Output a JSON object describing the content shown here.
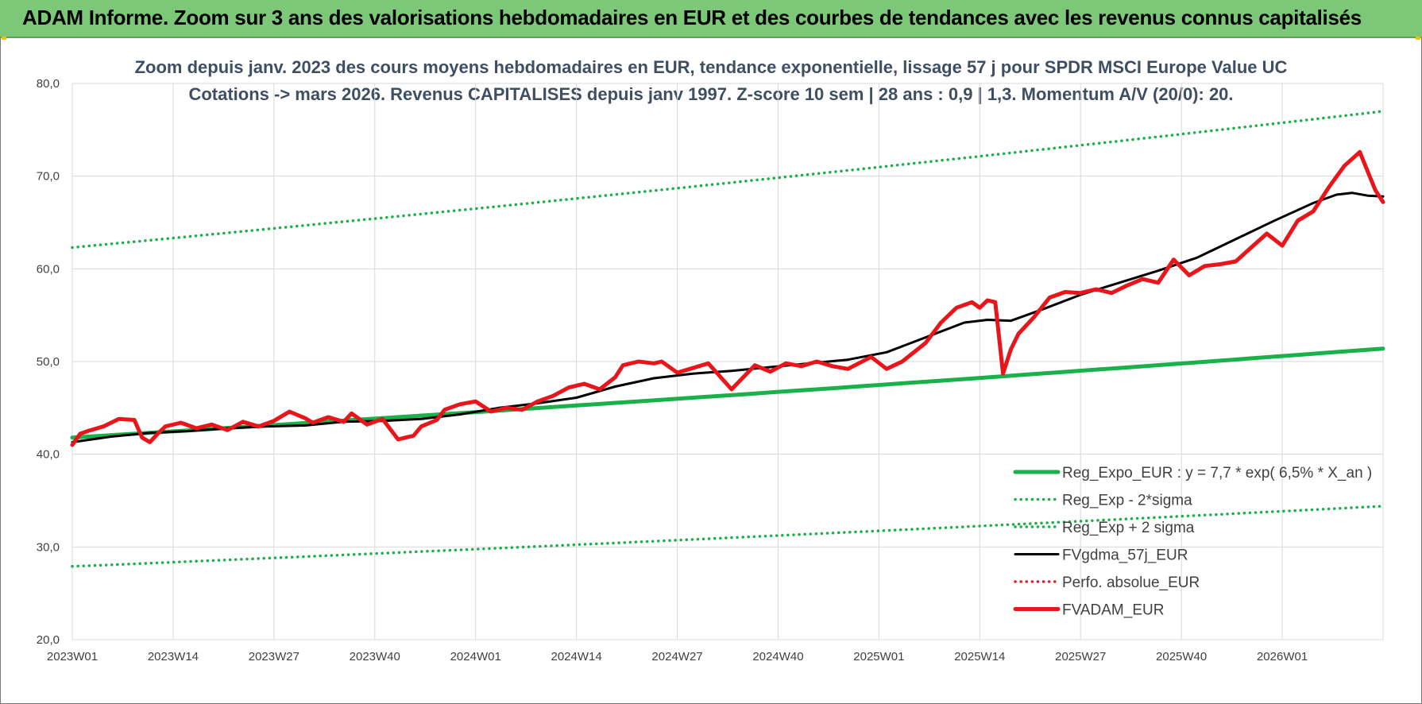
{
  "banner": {
    "title": "ADAM Informe. Zoom sur 3 ans des valorisations hebdomadaires en EUR et des courbes de tendances avec les revenus connus capitalisés",
    "color": "#7dc778"
  },
  "chart_data": {
    "type": "line",
    "title_line1": "Zoom depuis janv. 2023 des cours moyens hebdomadaires en EUR, tendance exponentielle, lissage 57 j pour SPDR MSCI Europe Value UC",
    "title_line2": "Cotations -> mars 2026. Revenus CAPITALISES depuis janv 1997. Z-score 10 sem | 28 ans : 0,9 | 1,3. Momentum A/V (20/0): 20.",
    "ylim": [
      20,
      80
    ],
    "y_ticks": [
      "80,0",
      "70,0",
      "60,0",
      "50,0",
      "40,0",
      "30,0",
      "20,0"
    ],
    "x_ticks": [
      "2023W01",
      "2023W14",
      "2023W27",
      "2023W40",
      "2024W01",
      "2024W14",
      "2024W27",
      "2024W40",
      "2025W01",
      "2025W14",
      "2025W27",
      "2025W40",
      "2026W01"
    ],
    "x_range_weeks": [
      0,
      169
    ],
    "grid": true,
    "legend_position": "bottom-right",
    "series": [
      {
        "name": "Reg_Expo_EUR : y = 7,7 * exp( 6,5% *  X_an )",
        "style": "solid-thick",
        "color": "#1ab04a",
        "x": [
          0,
          169
        ],
        "y": [
          41.8,
          51.4
        ],
        "curve": "exponential"
      },
      {
        "name": "Reg_Exp - 2*sigma",
        "style": "dotted",
        "color": "#1ab04a",
        "x": [
          0,
          169
        ],
        "y": [
          62.3,
          77.0
        ],
        "curve": "exponential"
      },
      {
        "name": "Reg_Exp + 2 sigma",
        "style": "dotted",
        "color": "#1ab04a",
        "x": [
          0,
          169
        ],
        "y": [
          27.9,
          34.4
        ],
        "curve": "exponential"
      },
      {
        "name": "FVgdma_57j_EUR",
        "style": "solid",
        "color": "#000000",
        "x": [
          0,
          5,
          10,
          15,
          20,
          25,
          30,
          35,
          40,
          45,
          50,
          55,
          60,
          65,
          70,
          75,
          80,
          85,
          90,
          95,
          100,
          105,
          110,
          115,
          118,
          121,
          125,
          130,
          135,
          140,
          145,
          150,
          155,
          160,
          163,
          165,
          167,
          169
        ],
        "y": [
          41.3,
          41.9,
          42.3,
          42.5,
          42.8,
          43.0,
          43.1,
          43.5,
          43.6,
          43.8,
          44.3,
          45.0,
          45.5,
          46.1,
          47.3,
          48.2,
          48.7,
          49.0,
          49.4,
          49.8,
          50.2,
          51.0,
          52.6,
          54.2,
          54.5,
          54.4,
          55.6,
          57.2,
          58.5,
          59.8,
          61.2,
          63.2,
          65.2,
          67.1,
          68.0,
          68.2,
          67.9,
          67.8
        ]
      },
      {
        "name": "Perfo. absolue_EUR",
        "style": "dotted",
        "color": "#e02020",
        "x": [],
        "y": []
      },
      {
        "name": "FVADAM_EUR",
        "style": "solid-thick",
        "color": "#e8151b",
        "x": [
          0,
          1,
          2,
          4,
          6,
          8,
          9,
          10,
          11,
          12,
          14,
          16,
          18,
          20,
          22,
          24,
          26,
          28,
          30,
          31,
          33,
          35,
          36,
          38,
          40,
          42,
          44,
          45,
          47,
          48,
          50,
          52,
          54,
          56,
          58,
          60,
          62,
          64,
          66,
          68,
          70,
          71,
          73,
          75,
          76,
          78,
          80,
          82,
          85,
          88,
          90,
          92,
          94,
          96,
          98,
          100,
          103,
          105,
          107,
          110,
          112,
          114,
          116,
          117,
          118,
          119,
          120,
          121,
          122,
          124,
          126,
          128,
          130,
          132,
          134,
          136,
          138,
          140,
          142,
          144,
          146,
          148,
          150,
          152,
          154,
          156,
          158,
          160,
          162,
          164,
          166,
          168,
          169
        ],
        "y": [
          41.0,
          42.2,
          42.5,
          43.0,
          43.8,
          43.7,
          41.8,
          41.3,
          42.2,
          43.0,
          43.4,
          42.8,
          43.2,
          42.6,
          43.5,
          43.0,
          43.6,
          44.6,
          43.9,
          43.4,
          44.0,
          43.5,
          44.4,
          43.2,
          43.8,
          41.6,
          42.0,
          43.0,
          43.7,
          44.8,
          45.4,
          45.7,
          44.6,
          45.0,
          44.8,
          45.7,
          46.3,
          47.2,
          47.6,
          47.0,
          48.3,
          49.6,
          50.0,
          49.8,
          50.0,
          48.8,
          49.3,
          49.8,
          47.0,
          49.6,
          48.9,
          49.8,
          49.5,
          50.0,
          49.5,
          49.2,
          50.5,
          49.2,
          50.0,
          52.0,
          54.2,
          55.8,
          56.4,
          55.8,
          56.6,
          56.4,
          48.7,
          51.3,
          53.0,
          54.8,
          56.9,
          57.5,
          57.4,
          57.8,
          57.4,
          58.2,
          58.9,
          58.5,
          61.0,
          59.3,
          60.3,
          60.5,
          60.8,
          62.3,
          63.8,
          62.5,
          65.2,
          66.2,
          68.8,
          71.1,
          72.6,
          68.5,
          67.2
        ]
      }
    ]
  }
}
